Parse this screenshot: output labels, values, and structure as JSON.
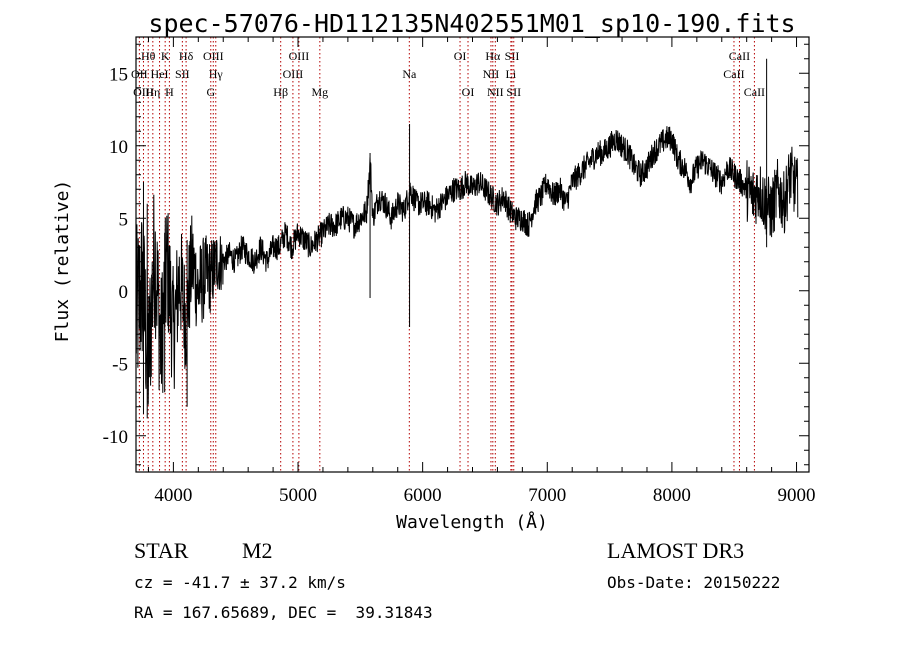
{
  "chart_data": {
    "type": "line",
    "title": "spec-57076-HD112135N402551M01_sp10-190.fits",
    "xlabel": "Wavelength (Å)",
    "ylabel": "Flux (relative)",
    "xlim": [
      3700,
      9100
    ],
    "ylim": [
      -12.5,
      17.5
    ],
    "x_ticks": [
      4000,
      5000,
      6000,
      7000,
      8000,
      9000
    ],
    "y_ticks": [
      -10,
      -5,
      0,
      5,
      10,
      15
    ],
    "series": [
      {
        "name": "flux",
        "x": [
          3700,
          3750,
          3800,
          3850,
          3900,
          3950,
          4000,
          4050,
          4100,
          4150,
          4200,
          4250,
          4300,
          4350,
          4400,
          4450,
          4500,
          4550,
          4600,
          4650,
          4700,
          4750,
          4800,
          4850,
          4900,
          4950,
          5000,
          5050,
          5100,
          5150,
          5200,
          5250,
          5300,
          5350,
          5400,
          5450,
          5500,
          5550,
          5580,
          5600,
          5650,
          5700,
          5750,
          5800,
          5850,
          5900,
          5950,
          6000,
          6050,
          6100,
          6150,
          6200,
          6250,
          6300,
          6350,
          6400,
          6450,
          6500,
          6550,
          6600,
          6650,
          6700,
          6750,
          6800,
          6850,
          6900,
          6950,
          7000,
          7050,
          7100,
          7150,
          7200,
          7250,
          7300,
          7350,
          7400,
          7450,
          7500,
          7550,
          7600,
          7650,
          7700,
          7750,
          7800,
          7850,
          7900,
          7950,
          8000,
          8050,
          8100,
          8150,
          8200,
          8250,
          8300,
          8350,
          8400,
          8450,
          8500,
          8550,
          8600,
          8650,
          8700,
          8750,
          8800,
          8850,
          8900,
          8950,
          9000
        ],
        "y": [
          -2,
          0.5,
          -5,
          3,
          -4,
          2,
          -3,
          1,
          -2,
          2,
          0,
          1,
          1,
          2,
          2,
          2.5,
          2,
          3,
          2.5,
          2,
          3,
          2,
          3,
          3,
          4,
          3,
          4,
          3.5,
          3,
          3.5,
          4,
          4.5,
          4.5,
          5,
          5,
          4.5,
          5,
          5.5,
          9,
          5,
          6.5,
          6,
          5,
          6,
          5.5,
          7,
          6,
          6,
          6,
          5.5,
          6,
          6.5,
          7,
          7,
          7.5,
          7,
          7.5,
          7,
          6.5,
          6,
          6.5,
          5.5,
          5,
          5,
          4.5,
          6,
          6.5,
          7.5,
          6.5,
          7,
          6,
          7.5,
          8,
          8.5,
          9,
          9.5,
          9.5,
          10,
          10.5,
          10,
          9.5,
          8.5,
          8,
          8.5,
          9.5,
          10,
          10.5,
          10.5,
          9,
          8.5,
          7.5,
          8.5,
          9,
          8.5,
          8,
          7.5,
          8.5,
          8,
          7.5,
          7,
          6.5,
          7,
          6,
          5.5,
          7,
          6,
          8,
          7
        ]
      }
    ],
    "spikes": [
      {
        "x": 3760,
        "lo": -8.5,
        "hi": 7.5
      },
      {
        "x": 3790,
        "lo": -8.8,
        "hi": 6.0
      },
      {
        "x": 3930,
        "lo": -7.0,
        "hi": 4.0
      },
      {
        "x": 4110,
        "lo": -8.0,
        "hi": 3.5
      },
      {
        "x": 5578,
        "lo": -0.5,
        "hi": 9.5
      },
      {
        "x": 5895,
        "lo": -2.5,
        "hi": 11.5
      },
      {
        "x": 8760,
        "lo": 3.0,
        "hi": 16.0
      }
    ],
    "lines": [
      {
        "label": "Hθ",
        "x": 3798,
        "row": 0
      },
      {
        "label": "OII",
        "x": 3727,
        "row": 1
      },
      {
        "label": "OIII",
        "x": 3760,
        "row": 2
      },
      {
        "label": "Hη",
        "x": 3835,
        "row": 2
      },
      {
        "label": "HeI",
        "x": 3889,
        "row": 1
      },
      {
        "label": "K",
        "x": 3934,
        "row": 0
      },
      {
        "label": "H",
        "x": 3968,
        "row": 2
      },
      {
        "label": "SII",
        "x": 4072,
        "row": 1
      },
      {
        "label": "Hδ",
        "x": 4102,
        "row": 0
      },
      {
        "label": "OIII",
        "x": 4320,
        "row": 0
      },
      {
        "label": "Hγ",
        "x": 4340,
        "row": 1
      },
      {
        "label": "G",
        "x": 4300,
        "row": 2
      },
      {
        "label": "Hβ",
        "x": 4861,
        "row": 2
      },
      {
        "label": "OIII",
        "x": 5007,
        "row": 0
      },
      {
        "label": "OIII",
        "x": 4959,
        "row": 1
      },
      {
        "label": "Mg",
        "x": 5175,
        "row": 2
      },
      {
        "label": "Na",
        "x": 5893,
        "row": 1
      },
      {
        "label": "OI",
        "x": 6300,
        "row": 0
      },
      {
        "label": "OI",
        "x": 6364,
        "row": 2
      },
      {
        "label": "Hα",
        "x": 6563,
        "row": 0
      },
      {
        "label": "NII",
        "x": 6548,
        "row": 1
      },
      {
        "label": "NII",
        "x": 6583,
        "row": 2
      },
      {
        "label": "SII",
        "x": 6717,
        "row": 0
      },
      {
        "label": "Li",
        "x": 6708,
        "row": 1
      },
      {
        "label": "SII",
        "x": 6731,
        "row": 2
      },
      {
        "label": "CaII",
        "x": 8542,
        "row": 0
      },
      {
        "label": "CaII",
        "x": 8498,
        "row": 1
      },
      {
        "label": "CaII",
        "x": 8662,
        "row": 2
      }
    ]
  },
  "info": {
    "type_label": "STAR",
    "subclass": "M2",
    "survey": "LAMOST DR3",
    "cz": "cz = -41.7 ± 37.2 km/s",
    "obs_date": "Obs-Date: 20150222",
    "coords": "RA = 167.65689, DEC =  39.31843"
  },
  "colors": {
    "spectrum": "#000000",
    "line_marker": "#b40000",
    "axes": "#000000"
  }
}
